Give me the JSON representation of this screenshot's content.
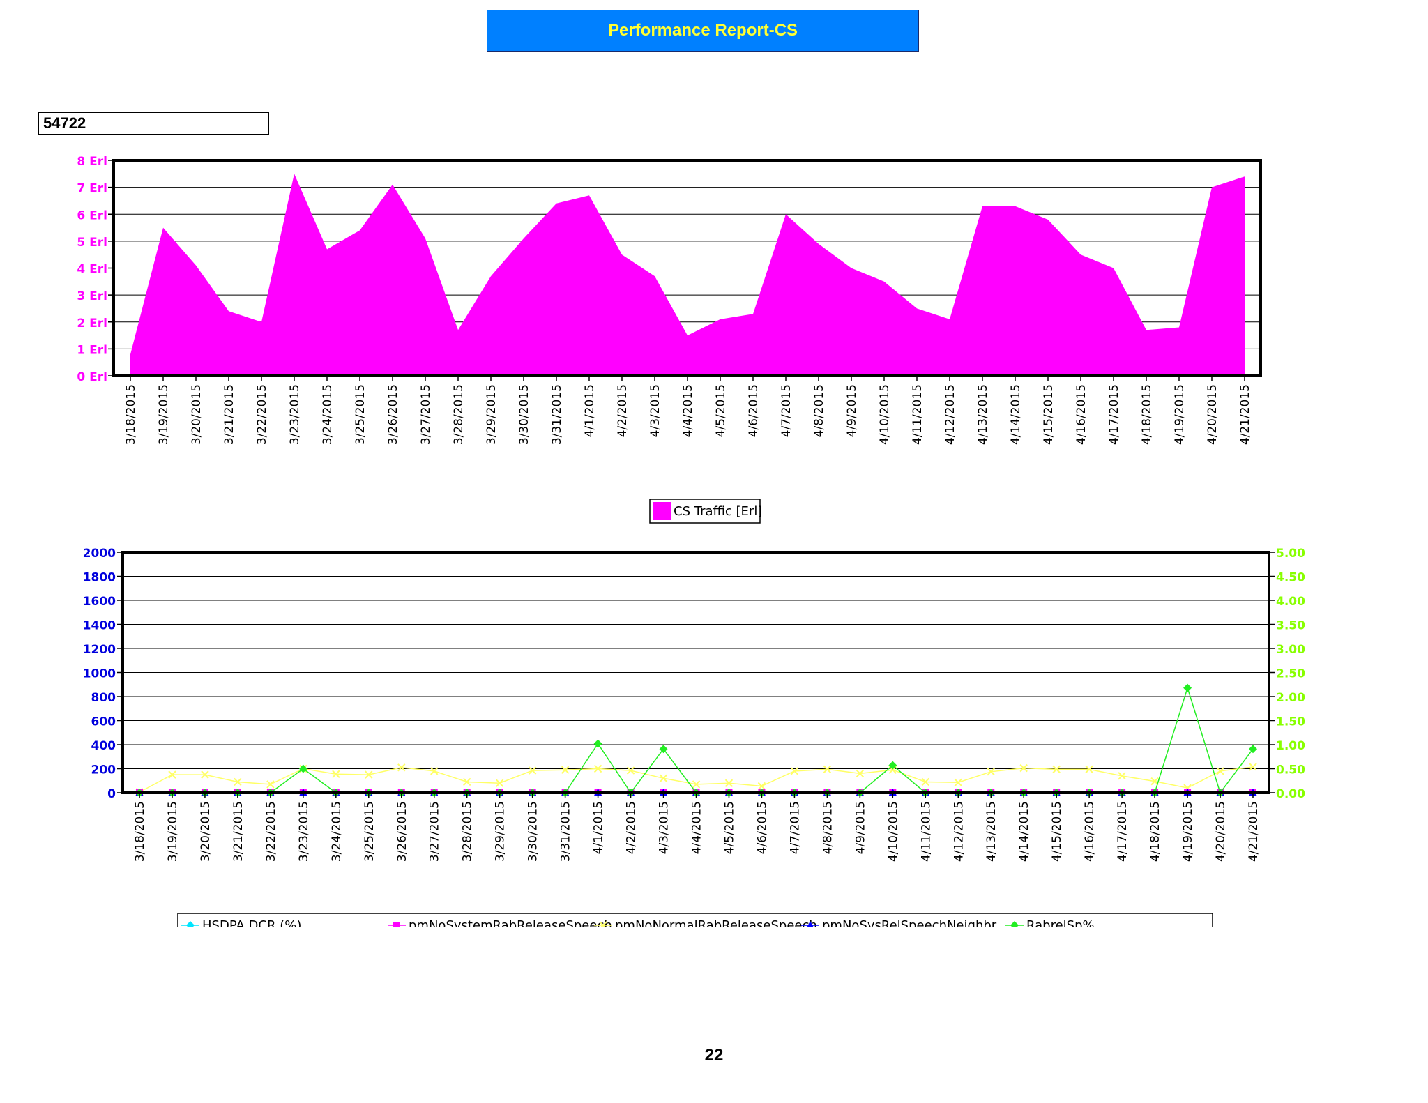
{
  "header": {
    "title": "Performance Report-CS",
    "site_id": "54722"
  },
  "page_number": "22",
  "colors": {
    "title_bg": "#0080ff",
    "title_text": "#ffff33",
    "cs_traffic": "#ff00ff",
    "left_axis": "#0000dd",
    "right_axis": "#88ff00",
    "hsdpa": "#00e5ff",
    "pmNoSystemRabReleaseSpeech": "#ff00ff",
    "pmNoNormalRabReleaseSpeech": "#ffff66",
    "pmNoSysRelSpeechNeighbr": "#0000ff",
    "rabrel": "#22ee22"
  },
  "chart_data": [
    {
      "type": "area",
      "categories": [
        "3/18/2015",
        "3/19/2015",
        "3/20/2015",
        "3/21/2015",
        "3/22/2015",
        "3/23/2015",
        "3/24/2015",
        "3/25/2015",
        "3/26/2015",
        "3/27/2015",
        "3/28/2015",
        "3/29/2015",
        "3/30/2015",
        "3/31/2015",
        "4/1/2015",
        "4/2/2015",
        "4/3/2015",
        "4/4/2015",
        "4/5/2015",
        "4/6/2015",
        "4/7/2015",
        "4/8/2015",
        "4/9/2015",
        "4/10/2015",
        "4/11/2015",
        "4/12/2015",
        "4/13/2015",
        "4/14/2015",
        "4/15/2015",
        "4/16/2015",
        "4/17/2015",
        "4/18/2015",
        "4/19/2015",
        "4/20/2015",
        "4/21/2015"
      ],
      "series": [
        {
          "name": "CS Traffic [Erl]",
          "values": [
            0.8,
            5.5,
            4.1,
            2.4,
            2.0,
            7.5,
            4.7,
            5.4,
            7.1,
            5.1,
            1.7,
            3.7,
            5.1,
            6.4,
            6.7,
            4.5,
            3.7,
            1.5,
            2.1,
            2.3,
            6.0,
            4.9,
            4.0,
            3.5,
            2.5,
            2.1,
            6.3,
            6.3,
            5.8,
            4.5,
            4.0,
            1.7,
            1.8,
            7.0,
            7.4
          ]
        }
      ],
      "yticks": [
        "0 Erl",
        "1 Erl",
        "2 Erl",
        "3 Erl",
        "4 Erl",
        "5 Erl",
        "6 Erl",
        "7 Erl",
        "8 Erl"
      ],
      "ylim": [
        0,
        8
      ],
      "grid": true,
      "legend": "bottom"
    },
    {
      "type": "line",
      "categories": [
        "3/18/2015",
        "3/19/2015",
        "3/20/2015",
        "3/21/2015",
        "3/22/2015",
        "3/23/2015",
        "3/24/2015",
        "3/25/2015",
        "3/26/2015",
        "3/27/2015",
        "3/28/2015",
        "3/29/2015",
        "3/30/2015",
        "3/31/2015",
        "4/1/2015",
        "4/2/2015",
        "4/3/2015",
        "4/4/2015",
        "4/5/2015",
        "4/6/2015",
        "4/7/2015",
        "4/8/2015",
        "4/9/2015",
        "4/10/2015",
        "4/11/2015",
        "4/12/2015",
        "4/13/2015",
        "4/14/2015",
        "4/15/2015",
        "4/16/2015",
        "4/17/2015",
        "4/18/2015",
        "4/19/2015",
        "4/20/2015",
        "4/21/2015"
      ],
      "ylim_left": [
        0,
        2000
      ],
      "ylim_right": [
        0,
        5
      ],
      "yticks_left": [
        "0",
        "200",
        "400",
        "600",
        "800",
        "1000",
        "1200",
        "1400",
        "1600",
        "1800",
        "2000"
      ],
      "yticks_right": [
        "0.00",
        "0.50",
        "1.00",
        "1.50",
        "2.00",
        "2.50",
        "3.00",
        "3.50",
        "4.00",
        "4.50",
        "5.00"
      ],
      "grid": true,
      "legend": "bottom",
      "series": [
        {
          "name": "HSDPA DCR (%)",
          "axis": "right",
          "marker": "diamond",
          "values": [
            0,
            0,
            0,
            0,
            0,
            0,
            0,
            0,
            0,
            0,
            0,
            0,
            0,
            0,
            0,
            0,
            0,
            0,
            0,
            0,
            0,
            0,
            0,
            0,
            0,
            0,
            0,
            0,
            0,
            0,
            0,
            0,
            0,
            0,
            0
          ]
        },
        {
          "name": "pmNoSystemRabReleaseSpeech",
          "axis": "left",
          "marker": "square",
          "values": [
            0,
            0,
            0,
            0,
            0,
            0,
            0,
            0,
            0,
            0,
            0,
            0,
            0,
            0,
            0,
            0,
            0,
            0,
            0,
            0,
            0,
            0,
            0,
            0,
            0,
            0,
            0,
            0,
            0,
            0,
            0,
            0,
            0,
            0,
            0
          ]
        },
        {
          "name": "pmNoNormalRabReleaseSpeech",
          "axis": "left",
          "marker": "x",
          "values": [
            5,
            150,
            150,
            90,
            70,
            200,
            155,
            150,
            210,
            180,
            90,
            80,
            185,
            190,
            200,
            185,
            120,
            70,
            80,
            55,
            180,
            195,
            160,
            190,
            90,
            85,
            175,
            205,
            195,
            195,
            140,
            95,
            40,
            180,
            215
          ]
        },
        {
          "name": "pmNoSysRelSpeechNeighbr",
          "axis": "left",
          "marker": "triangle",
          "values": [
            0,
            0,
            0,
            0,
            0,
            1,
            0,
            0,
            0,
            0,
            0,
            0,
            0,
            0,
            1,
            0,
            1,
            0,
            0,
            0,
            0,
            0,
            0,
            1,
            0,
            0,
            0,
            0,
            0,
            0,
            0,
            0,
            1,
            0,
            1
          ]
        },
        {
          "name": "RabrelSp%",
          "axis": "right",
          "marker": "diamond",
          "values": [
            0,
            0,
            0,
            0,
            0,
            0.5,
            0,
            0,
            0,
            0,
            0,
            0,
            0,
            0,
            1.02,
            0,
            0.91,
            0,
            0,
            0,
            0,
            0,
            0,
            0.57,
            0,
            0,
            0,
            0,
            0,
            0,
            0,
            0,
            2.18,
            0,
            0.91
          ]
        }
      ]
    }
  ]
}
